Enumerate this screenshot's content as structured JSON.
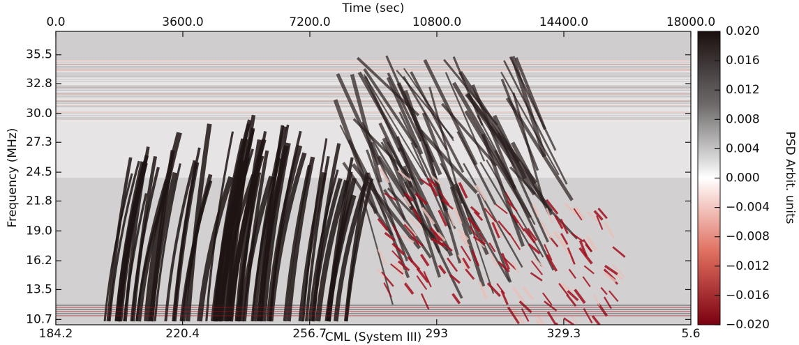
{
  "chart_data": {
    "type": "spectrogram",
    "x_label_top": "Time (sec)",
    "x_label": "CML (System III)",
    "y_label": "Frequency (MHz)",
    "colorbar_label": "PSD Arbit. units",
    "x2lim": [
      0,
      18000
    ],
    "x2ticks": [
      {
        "value": 0,
        "label": "0.0"
      },
      {
        "value": 3600,
        "label": "3600.0"
      },
      {
        "value": 7200,
        "label": "7200.0"
      },
      {
        "value": 10800,
        "label": "10800.0"
      },
      {
        "value": 14400,
        "label": "14400.0"
      },
      {
        "value": 18000,
        "label": "18000.0"
      }
    ],
    "xlim": [
      184.2,
      365.6
    ],
    "xticks": [
      184.2,
      220.4,
      256.7,
      293,
      {
        "value": 329.3,
        "label": "329.3"
      },
      {
        "value": 365.6,
        "label": "5.6"
      }
    ],
    "ylim": [
      10.2,
      37.7
    ],
    "yticks": [
      10.7,
      13.5,
      16.2,
      19,
      21.8,
      24.5,
      27.3,
      30,
      32.8,
      35.5
    ],
    "ytick_labels": [
      "10.7",
      "13.5",
      "16.2",
      "19.0",
      "21.8",
      "24.5",
      "27.3",
      "30.0",
      "32.8",
      "35.5"
    ],
    "clim": [
      -0.02,
      0.02
    ],
    "cticks": [
      {
        "value": 0.02,
        "label": "0.020"
      },
      {
        "value": 0.016,
        "label": "0.016"
      },
      {
        "value": 0.012,
        "label": "0.012"
      },
      {
        "value": 0.008,
        "label": "0.008"
      },
      {
        "value": 0.004,
        "label": "0.004"
      },
      {
        "value": 0,
        "label": "0.000"
      },
      {
        "value": -0.004,
        "label": "−0.004"
      },
      {
        "value": -0.008,
        "label": "−0.008"
      },
      {
        "value": -0.012,
        "label": "−0.012"
      },
      {
        "value": -0.016,
        "label": "−0.016"
      },
      {
        "value": -0.02,
        "label": "−0.020"
      }
    ]
  }
}
